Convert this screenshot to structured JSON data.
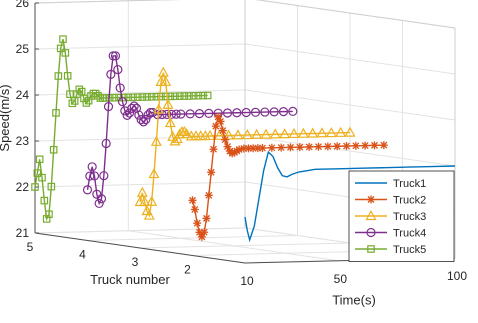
{
  "chart_data": {
    "type": "line",
    "view": "3d",
    "title": "",
    "xlabel": "Time(s)",
    "ylabel": "Truck number",
    "zlabel": "Speed(m/s)",
    "xlim": [
      10,
      100
    ],
    "ylim": [
      1,
      5
    ],
    "zlim": [
      21,
      26
    ],
    "x_ticks": [
      "10",
      "50",
      "100"
    ],
    "y_ticks": [
      "2",
      "3",
      "4",
      "5"
    ],
    "z_ticks": [
      "21",
      "22",
      "23",
      "24",
      "25",
      "26"
    ],
    "grid": true,
    "legend_position": "right",
    "colors": {
      "Truck1": "#0072BD",
      "Truck2": "#D95319",
      "Truck3": "#EDB120",
      "Truck4": "#7E2F8E",
      "Truck5": "#77AC30"
    },
    "series": [
      {
        "name": "Truck1",
        "truck": 1,
        "marker": "none",
        "x": [
          10,
          11,
          12,
          14,
          16,
          18,
          20,
          22,
          24,
          26,
          28,
          30,
          33,
          36,
          40,
          50,
          60,
          70,
          80,
          90,
          100
        ],
        "z": [
          22.0,
          21.7,
          21.5,
          21.8,
          22.4,
          23.0,
          23.4,
          23.3,
          23.05,
          22.88,
          22.85,
          22.9,
          22.95,
          22.97,
          23.0,
          23.0,
          23.0,
          23.0,
          23.0,
          23.0,
          23.0
        ]
      },
      {
        "name": "Truck2",
        "truck": 2,
        "marker": "asterisk",
        "x": [
          10,
          11,
          12,
          13,
          14,
          15,
          16,
          17,
          18,
          19,
          20,
          21,
          22,
          23,
          24,
          25,
          26,
          27,
          28,
          29,
          30,
          32,
          34,
          36,
          38,
          40,
          44,
          48,
          52,
          56,
          60,
          64,
          68,
          72,
          76,
          80,
          84,
          88,
          92
        ],
        "z": [
          22.2,
          22.0,
          21.7,
          21.5,
          21.4,
          21.5,
          21.8,
          22.3,
          22.8,
          23.3,
          23.8,
          24.0,
          23.9,
          23.7,
          23.5,
          23.35,
          23.25,
          23.2,
          23.22,
          23.25,
          23.28,
          23.3,
          23.3,
          23.3,
          23.3,
          23.3,
          23.3,
          23.3,
          23.3,
          23.3,
          23.3,
          23.3,
          23.3,
          23.3,
          23.3,
          23.3,
          23.3,
          23.3,
          23.3
        ]
      },
      {
        "name": "Truck3",
        "truck": 3,
        "marker": "triangle",
        "x": [
          10,
          11,
          12,
          13,
          14,
          15,
          16,
          17,
          18,
          19,
          20,
          21,
          22,
          23,
          24,
          25,
          26,
          27,
          28,
          29,
          30,
          32,
          34,
          36,
          38,
          40,
          44,
          48,
          52,
          56,
          60,
          64,
          68,
          72,
          76,
          80,
          84,
          88,
          92,
          96,
          100
        ],
        "z": [
          22.0,
          22.2,
          22.0,
          21.8,
          21.7,
          22.0,
          22.6,
          23.3,
          24.0,
          24.6,
          24.8,
          24.6,
          24.1,
          23.7,
          23.4,
          23.3,
          23.35,
          23.45,
          23.5,
          23.5,
          23.45,
          23.4,
          23.4,
          23.4,
          23.4,
          23.4,
          23.4,
          23.4,
          23.4,
          23.4,
          23.4,
          23.4,
          23.4,
          23.4,
          23.4,
          23.4,
          23.4,
          23.4,
          23.4,
          23.4,
          23.4
        ]
      },
      {
        "name": "Truck4",
        "truck": 4,
        "marker": "circle",
        "x": [
          10,
          11,
          12,
          13,
          14,
          15,
          16,
          17,
          18,
          19,
          20,
          21,
          22,
          23,
          24,
          25,
          26,
          27,
          28,
          29,
          30,
          31,
          32,
          33,
          34,
          35,
          36,
          37,
          38,
          40,
          42,
          44,
          46,
          48,
          50,
          54,
          58,
          62,
          66,
          70,
          74,
          78,
          82,
          86,
          90,
          94,
          98
        ],
        "z": [
          22.1,
          22.4,
          22.6,
          22.4,
          22.0,
          21.8,
          21.9,
          22.4,
          23.1,
          23.9,
          24.6,
          25.0,
          25.0,
          24.7,
          24.3,
          24.0,
          23.8,
          23.7,
          23.75,
          23.85,
          23.9,
          23.85,
          23.7,
          23.6,
          23.55,
          23.6,
          23.7,
          23.75,
          23.75,
          23.7,
          23.7,
          23.7,
          23.7,
          23.7,
          23.7,
          23.7,
          23.7,
          23.7,
          23.7,
          23.7,
          23.7,
          23.7,
          23.7,
          23.7,
          23.7,
          23.7,
          23.7
        ]
      },
      {
        "name": "Truck5",
        "truck": 5,
        "marker": "square",
        "x": [
          10,
          11,
          12,
          13,
          14,
          15,
          16,
          17,
          18,
          19,
          20,
          21,
          22,
          23,
          24,
          25,
          26,
          27,
          28,
          29,
          30,
          31,
          32,
          33,
          34,
          35,
          36,
          37,
          38,
          39,
          40,
          42,
          44,
          46,
          48,
          50,
          52,
          54,
          56,
          58,
          60,
          62,
          64,
          66,
          68,
          70,
          72,
          74,
          76,
          78,
          80,
          82,
          84
        ],
        "z": [
          22.0,
          22.3,
          22.6,
          22.2,
          21.7,
          21.3,
          21.4,
          22.0,
          22.8,
          23.6,
          24.4,
          25.0,
          25.2,
          24.9,
          24.4,
          24.0,
          23.8,
          23.85,
          24.0,
          24.1,
          24.05,
          23.9,
          23.8,
          23.85,
          23.95,
          24.0,
          24.0,
          23.95,
          23.9,
          23.9,
          23.9,
          23.9,
          23.9,
          23.9,
          23.9,
          23.9,
          23.9,
          23.9,
          23.9,
          23.9,
          23.9,
          23.9,
          23.9,
          23.9,
          23.9,
          23.9,
          23.9,
          23.9,
          23.9,
          23.9,
          23.9,
          23.9,
          23.9
        ]
      }
    ]
  }
}
